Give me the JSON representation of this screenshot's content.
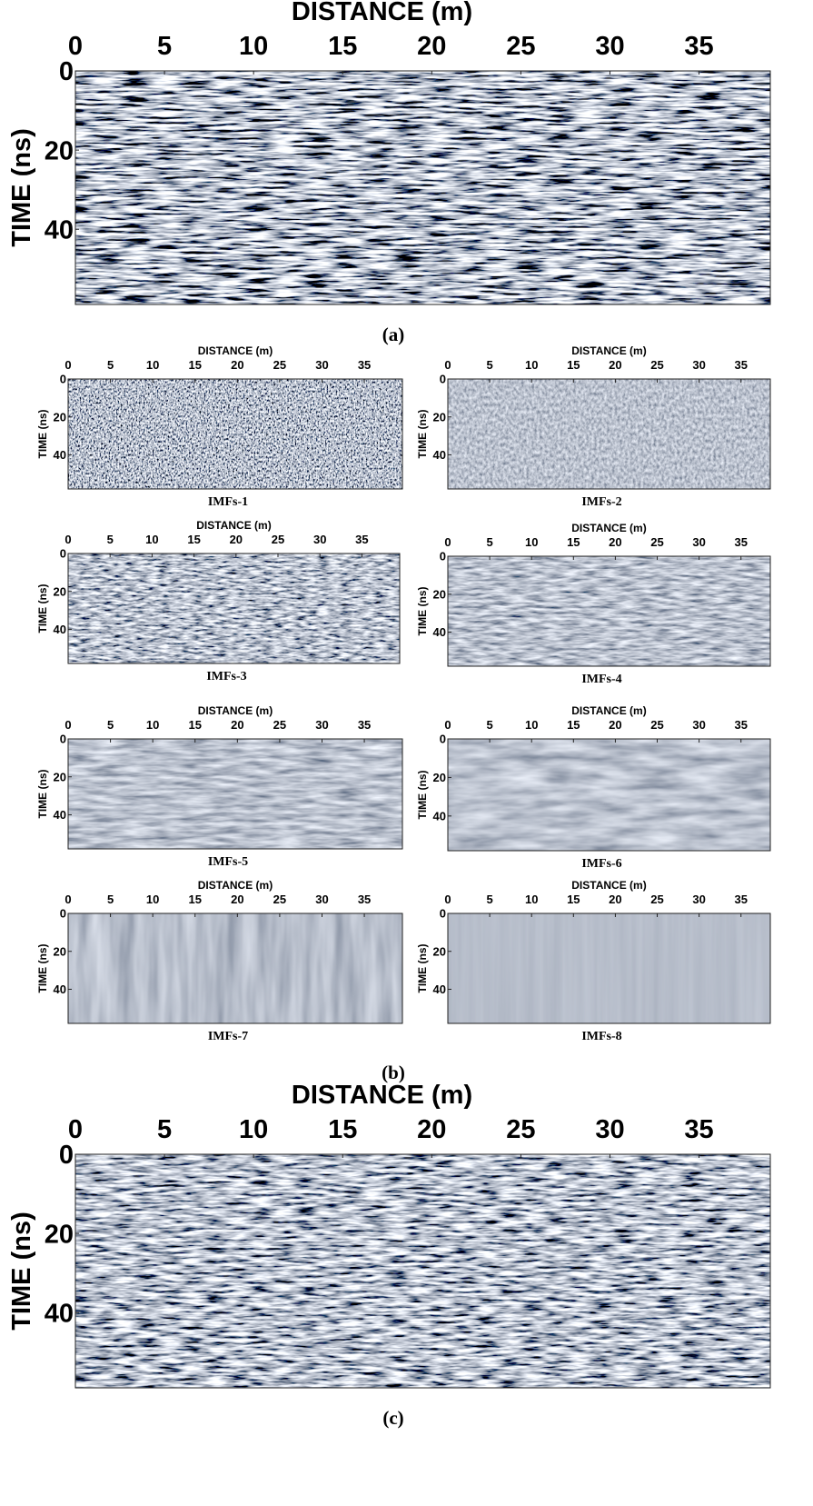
{
  "chart_data": [
    {
      "type": "image",
      "x_label": "DISTANCE (m)",
      "y_label": "TIME (ns)",
      "caption": "(a)",
      "xlim": [
        0,
        39
      ],
      "ylim": [
        0,
        59
      ],
      "xticks": [
        0,
        5,
        10,
        15,
        20,
        25,
        30,
        35
      ],
      "yticks": [
        0,
        20,
        40
      ]
    },
    {
      "type": "image",
      "x_label": "DISTANCE (m)",
      "y_label": "TIME (ns)",
      "caption": "IMFs-1",
      "xlim": [
        0,
        39.5
      ],
      "ylim": [
        0,
        58
      ],
      "xticks": [
        0,
        5,
        10,
        15,
        20,
        25,
        30,
        35
      ],
      "yticks": [
        0,
        20,
        40
      ]
    },
    {
      "type": "image",
      "x_label": "DISTANCE (m)",
      "y_label": "TIME (ns)",
      "caption": "IMFs-2",
      "xlim": [
        0,
        38.5
      ],
      "ylim": [
        0,
        58
      ],
      "xticks": [
        0,
        5,
        10,
        15,
        20,
        25,
        30,
        35
      ],
      "yticks": [
        0,
        20,
        40
      ]
    },
    {
      "type": "image",
      "x_label": "DISTANCE (m)",
      "y_label": "TIME (ns)",
      "caption": "IMFs-3",
      "xlim": [
        0,
        39.5
      ],
      "ylim": [
        0,
        58
      ],
      "xticks": [
        0,
        5,
        10,
        15,
        20,
        25,
        30,
        35
      ],
      "yticks": [
        0,
        20,
        40
      ]
    },
    {
      "type": "image",
      "x_label": "DISTANCE (m)",
      "y_label": "TIME (ns)",
      "caption": "IMFs-4",
      "xlim": [
        0,
        38.5
      ],
      "ylim": [
        0,
        58
      ],
      "xticks": [
        0,
        5,
        10,
        15,
        20,
        25,
        30,
        35
      ],
      "yticks": [
        0,
        20,
        40
      ]
    },
    {
      "type": "image",
      "x_label": "DISTANCE (m)",
      "y_label": "TIME (ns)",
      "caption": "IMFs-5",
      "xlim": [
        0,
        39.5
      ],
      "ylim": [
        0,
        58
      ],
      "xticks": [
        0,
        5,
        10,
        15,
        20,
        25,
        30,
        35
      ],
      "yticks": [
        0,
        20,
        40
      ]
    },
    {
      "type": "image",
      "x_label": "DISTANCE (m)",
      "y_label": "TIME (ns)",
      "caption": "IMFs-6",
      "xlim": [
        0,
        38.5
      ],
      "ylim": [
        0,
        58
      ],
      "xticks": [
        0,
        5,
        10,
        15,
        20,
        25,
        30,
        35
      ],
      "yticks": [
        0,
        20,
        40
      ]
    },
    {
      "type": "image",
      "x_label": "DISTANCE (m)",
      "y_label": "TIME (ns)",
      "caption": "IMFs-7",
      "xlim": [
        0,
        39.5
      ],
      "ylim": [
        0,
        58
      ],
      "xticks": [
        0,
        5,
        10,
        15,
        20,
        25,
        30,
        35
      ],
      "yticks": [
        0,
        20,
        40
      ]
    },
    {
      "type": "image",
      "x_label": "DISTANCE (m)",
      "y_label": "TIME (ns)",
      "caption": "IMFs-8",
      "xlim": [
        0,
        38.5
      ],
      "ylim": [
        0,
        58
      ],
      "xticks": [
        0,
        5,
        10,
        15,
        20,
        25,
        30,
        35
      ],
      "yticks": [
        0,
        20,
        40
      ]
    },
    {
      "type": "image",
      "x_label": "DISTANCE (m)",
      "y_label": "TIME (ns)",
      "caption": "(c)",
      "xlim": [
        0,
        39
      ],
      "ylim": [
        0,
        59
      ],
      "xticks": [
        0,
        5,
        10,
        15,
        20,
        25,
        30,
        35
      ],
      "yticks": [
        0,
        20,
        40
      ]
    }
  ],
  "group_caption": "(b)"
}
